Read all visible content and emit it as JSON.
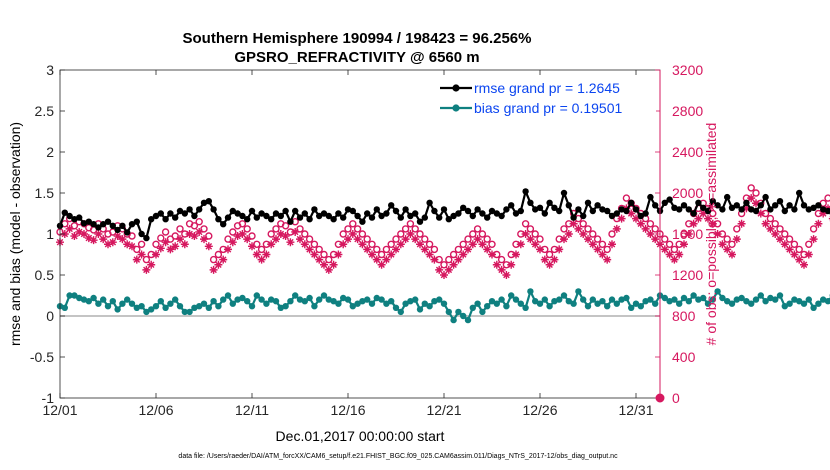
{
  "chart_data": {
    "type": "line",
    "title": "Southern Hemisphere 190994 / 198423 = 96.256%",
    "subtitle": "GPSRO_REFRACTIVITY @ 6560 m",
    "xlabel": "Dec.01,2017 00:00:00 start",
    "ylabel": "rmse and bias (model - observation)",
    "y2label": "# of obs: o=possible; ∗=assimilated",
    "footnote": "data file: /Users/raeder/DAI/ATM_forcXX/CAM6_setup/f.e21.FHIST_BGC.f09_025.CAM6assim.011/Diags_NTrS_2017-12/obs_diag_output.nc",
    "x_range": [
      1,
      32.25
    ],
    "ylim": [
      -1,
      3
    ],
    "y2lim": [
      0,
      3200
    ],
    "x_ticks": [
      1,
      6,
      11,
      16,
      21,
      26,
      31
    ],
    "x_tick_labels": [
      "12/01",
      "12/06",
      "12/11",
      "12/16",
      "12/21",
      "12/26",
      "12/31"
    ],
    "y_ticks": [
      -1,
      -0.5,
      0,
      0.5,
      1,
      1.5,
      2,
      2.5,
      3
    ],
    "y_tick_labels": [
      "-1",
      "-0.5",
      "0",
      "0.5",
      "1",
      "1.5",
      "2",
      "2.5",
      "3"
    ],
    "y2_ticks": [
      0,
      400,
      800,
      1200,
      1600,
      2000,
      2400,
      2800,
      3200
    ],
    "y2_tick_labels": [
      "0",
      "400",
      "800",
      "1200",
      "1600",
      "2000",
      "2400",
      "2800",
      "3200"
    ],
    "x_step_days": 0.25,
    "legend": [
      {
        "label": "rmse grand pr = 1.2645",
        "color": "#000000"
      },
      {
        "label": "bias grand pr = 0.19501",
        "color": "#0f8080"
      }
    ],
    "colors": {
      "rmse": "#000000",
      "bias": "#0f8080",
      "obs": "#d6185f",
      "zero": "#b0b0b0",
      "legend_text": "#0b45f0"
    },
    "series": [
      {
        "name": "rmse",
        "values": [
          1.1,
          1.26,
          1.22,
          1.18,
          1.2,
          1.13,
          1.15,
          1.12,
          1.08,
          1.12,
          1.15,
          1.1,
          1.05,
          1.1,
          1.02,
          1.12,
          1.15,
          1.0,
          0.95,
          1.18,
          1.22,
          1.25,
          1.18,
          1.25,
          1.2,
          1.28,
          1.25,
          1.3,
          1.22,
          1.3,
          1.38,
          1.4,
          1.3,
          1.18,
          1.12,
          1.2,
          1.28,
          1.25,
          1.22,
          1.18,
          1.28,
          1.2,
          1.25,
          1.22,
          1.18,
          1.25,
          1.22,
          1.28,
          1.15,
          1.28,
          1.2,
          1.25,
          1.18,
          1.3,
          1.22,
          1.25,
          1.22,
          1.18,
          1.25,
          1.2,
          1.3,
          1.28,
          1.22,
          1.15,
          1.25,
          1.2,
          1.3,
          1.22,
          1.25,
          1.35,
          1.28,
          1.2,
          1.3,
          1.22,
          1.25,
          1.15,
          1.2,
          1.38,
          1.28,
          1.2,
          1.3,
          1.18,
          1.22,
          1.25,
          1.32,
          1.28,
          1.22,
          1.3,
          1.25,
          1.2,
          1.28,
          1.25,
          1.22,
          1.3,
          1.35,
          1.25,
          1.28,
          1.52,
          1.38,
          1.3,
          1.32,
          1.25,
          1.38,
          1.32,
          1.28,
          1.5,
          1.35,
          1.2,
          1.3,
          1.22,
          1.38,
          1.28,
          1.35,
          1.3,
          1.28,
          1.22,
          1.25,
          1.3,
          1.28,
          1.38,
          1.3,
          1.22,
          1.25,
          1.45,
          1.35,
          1.28,
          1.38,
          1.42,
          1.32,
          1.3,
          1.35,
          1.3,
          1.25,
          1.38,
          1.32,
          1.28,
          1.4,
          1.35,
          1.3,
          1.45,
          1.32,
          1.35,
          1.3,
          1.38,
          1.3,
          1.28,
          1.35,
          1.45,
          1.3,
          1.35,
          1.4,
          1.28,
          1.35,
          1.3,
          1.5,
          1.35,
          1.3,
          1.32,
          1.35,
          1.3,
          1.28,
          1.25,
          1.4,
          1.3,
          1.38,
          1.28,
          1.32,
          1.35,
          1.42,
          1.3,
          1.28,
          1.35,
          1.55,
          1.38,
          1.3,
          1.25,
          1.4,
          1.32,
          1.5,
          1.38,
          1.35,
          1.32,
          1.38,
          1.35,
          1.3,
          1.35,
          1.38,
          1.28,
          1.35,
          1.3,
          1.38,
          1.45,
          1.35,
          1.32,
          1.38,
          1.28,
          1.3,
          1.52,
          1.38,
          1.35,
          1.3,
          1.42,
          1.35,
          1.45,
          1.38,
          1.32,
          1.35,
          1.3,
          1.28,
          1.35,
          1.25,
          1.32,
          1.3,
          1.48,
          1.35,
          1.42,
          1.3,
          1.35,
          1.28,
          1.32,
          1.35,
          1.45,
          1.32,
          1.3,
          1.35,
          1.38,
          1.3,
          1.28,
          1.3,
          1.35,
          1.55,
          1.35,
          1.3,
          1.38,
          1.32,
          1.35,
          1.4,
          1.3,
          1.28,
          1.35,
          1.32,
          1.3,
          1.28,
          1.35,
          1.4,
          1.3,
          1.35,
          1.38,
          1.42,
          1.3,
          1.38,
          1.35,
          1.3,
          1.45,
          1.32,
          1.3,
          1.28,
          1.3,
          1.35
        ]
      },
      {
        "name": "bias",
        "values": [
          0.12,
          0.1,
          0.25,
          0.25,
          0.22,
          0.2,
          0.18,
          0.22,
          0.15,
          0.2,
          0.12,
          0.18,
          0.08,
          0.15,
          0.2,
          0.15,
          0.1,
          0.12,
          0.05,
          0.08,
          0.12,
          0.18,
          0.1,
          0.15,
          0.2,
          0.12,
          0.05,
          0.05,
          0.1,
          0.12,
          0.15,
          0.1,
          0.18,
          0.12,
          0.2,
          0.25,
          0.15,
          0.2,
          0.22,
          0.18,
          0.12,
          0.25,
          0.2,
          0.15,
          0.2,
          0.18,
          0.1,
          0.12,
          0.18,
          0.25,
          0.2,
          0.18,
          0.22,
          0.12,
          0.2,
          0.25,
          0.2,
          0.18,
          0.15,
          0.22,
          0.2,
          0.12,
          0.15,
          0.18,
          0.2,
          0.15,
          0.22,
          0.2,
          0.15,
          0.18,
          0.1,
          0.05,
          0.15,
          0.18,
          0.2,
          0.08,
          0.15,
          0.12,
          0.18,
          0.2,
          0.15,
          0.05,
          -0.05,
          0.05,
          0.0,
          -0.05,
          0.1,
          0.15,
          0.05,
          0.12,
          0.18,
          0.15,
          0.2,
          0.12,
          0.25,
          0.2,
          0.15,
          0.1,
          0.3,
          0.18,
          0.15,
          0.2,
          0.12,
          0.18,
          0.2,
          0.25,
          0.18,
          0.15,
          0.3,
          0.2,
          0.12,
          0.2,
          0.15,
          0.18,
          0.12,
          0.2,
          0.15,
          0.2,
          0.22,
          0.1,
          0.15,
          0.12,
          0.18,
          0.2,
          0.15,
          0.25,
          0.22,
          0.18,
          0.2,
          0.15,
          0.22,
          0.18,
          0.25,
          0.2,
          0.22,
          0.15,
          0.2,
          0.3,
          0.22,
          0.18,
          0.15,
          0.2,
          0.22,
          0.18,
          0.15,
          0.2,
          0.25,
          0.18,
          0.22,
          0.2,
          0.25,
          0.12,
          0.15,
          0.2,
          0.18,
          0.15,
          0.2,
          0.1,
          0.15,
          0.2,
          0.18,
          0.25,
          0.2,
          0.18,
          0.15,
          0.2,
          0.25,
          0.22,
          0.15,
          0.2,
          0.22,
          0.18,
          0.2,
          0.15,
          0.25,
          0.3,
          0.15,
          0.18,
          0.22,
          0.2,
          0.15,
          0.18,
          0.2,
          0.15,
          0.22,
          0.18,
          0.2,
          0.15,
          0.12,
          0.18,
          0.22,
          0.25,
          0.2,
          0.18,
          0.22,
          0.2,
          0.25,
          0.28,
          0.22,
          0.3,
          0.25,
          0.2,
          0.22,
          0.18,
          0.2,
          0.25,
          0.22,
          0.18,
          0.2,
          0.22,
          0.25,
          0.2,
          0.22,
          0.25,
          0.3,
          0.25,
          0.22,
          0.28,
          0.35,
          0.3,
          0.25,
          0.22,
          0.28,
          0.3,
          0.25,
          0.22,
          0.28,
          0.4,
          0.3,
          0.25,
          0.28,
          0.3,
          0.35,
          0.28,
          0.3,
          0.25,
          0.22,
          0.28,
          0.35,
          0.22,
          0.3,
          0.25,
          0.22,
          0.28,
          0.3,
          0.25,
          0.28,
          0.3,
          0.32,
          0.25,
          0.28,
          0.38,
          0.3,
          0.35,
          0.28,
          0.35,
          0.3,
          -0.02,
          0.28
        ]
      },
      {
        "name": "possible",
        "axis": "right",
        "values": [
          1620,
          1700,
          1750,
          1680,
          1720,
          1700,
          1660,
          1640,
          1700,
          1650,
          1600,
          1620,
          1680,
          1650,
          1600,
          1580,
          1450,
          1500,
          1350,
          1400,
          1500,
          1560,
          1620,
          1550,
          1580,
          1650,
          1600,
          1700,
          1680,
          1720,
          1650,
          1580,
          1350,
          1400,
          1450,
          1550,
          1620,
          1680,
          1700,
          1650,
          1580,
          1500,
          1450,
          1500,
          1600,
          1650,
          1700,
          1680,
          1620,
          1720,
          1650,
          1600,
          1550,
          1500,
          1450,
          1400,
          1350,
          1400,
          1500,
          1600,
          1650,
          1700,
          1650,
          1600,
          1550,
          1500,
          1450,
          1400,
          1450,
          1500,
          1550,
          1600,
          1650,
          1700,
          1650,
          1600,
          1550,
          1500,
          1450,
          1350,
          1300,
          1350,
          1400,
          1450,
          1500,
          1550,
          1600,
          1650,
          1600,
          1550,
          1500,
          1400,
          1350,
          1300,
          1400,
          1500,
          1600,
          1700,
          1650,
          1600,
          1550,
          1450,
          1400,
          1450,
          1550,
          1650,
          1700,
          1800,
          1750,
          1700,
          1650,
          1600,
          1550,
          1500,
          1450,
          1600,
          1750,
          1850,
          1950,
          1900,
          1850,
          1800,
          1750,
          1700,
          1650,
          1600,
          1550,
          1500,
          1450,
          1500,
          1600,
          1700,
          1800,
          1850,
          1900,
          1850,
          1800,
          1700,
          1600,
          1550,
          1500,
          1650,
          1800,
          1950,
          2050,
          2000,
          1900,
          1800,
          1750,
          1700,
          1650,
          1600,
          1550,
          1500,
          1450,
          1400,
          1500,
          1650,
          1800,
          1900,
          1950,
          1850,
          1800,
          1700,
          1600,
          1550,
          1500,
          1450,
          1500,
          1600,
          1700,
          1800,
          1900,
          2000,
          2050,
          1950,
          1900,
          1850,
          1800,
          1700,
          1650,
          1600,
          1550,
          1500,
          1450,
          1500,
          1600,
          1700,
          1800,
          1850,
          1900,
          1950,
          2000,
          1950,
          1850,
          1800,
          1700,
          1650,
          1600,
          1700,
          1800,
          1900,
          2000,
          2100,
          2050,
          1950,
          1900,
          1850,
          1800,
          1750,
          1700,
          1650,
          1600,
          1550,
          1500,
          1600,
          1700,
          1800,
          1900,
          1950,
          1900,
          1850,
          1800,
          1750,
          1700,
          1650,
          1600,
          1550,
          1500,
          1450,
          1500,
          1600,
          1700,
          1800,
          1850,
          1900,
          1850,
          1800,
          1750,
          1700,
          1650,
          1600,
          1550,
          1500,
          1450,
          1500,
          1600,
          1700,
          1650,
          1600,
          1550,
          1500,
          1600,
          1650,
          1700,
          1600,
          1650
        ]
      },
      {
        "name": "assimilated",
        "axis": "right",
        "values": [
          1520,
          1600,
          1650,
          1580,
          1620,
          1600,
          1560,
          1540,
          1600,
          1550,
          1500,
          1520,
          1580,
          1550,
          1500,
          1480,
          1350,
          1400,
          1250,
          1300,
          1400,
          1460,
          1520,
          1450,
          1480,
          1550,
          1500,
          1600,
          1580,
          1620,
          1550,
          1480,
          1250,
          1300,
          1350,
          1450,
          1520,
          1580,
          1600,
          1550,
          1480,
          1400,
          1350,
          1400,
          1500,
          1550,
          1600,
          1580,
          1520,
          1620,
          1550,
          1500,
          1450,
          1400,
          1350,
          1300,
          1250,
          1300,
          1400,
          1500,
          1550,
          1600,
          1550,
          1500,
          1450,
          1400,
          1350,
          1300,
          1350,
          1400,
          1450,
          1500,
          1550,
          1600,
          1550,
          1500,
          1450,
          1400,
          1350,
          1250,
          1200,
          1250,
          1300,
          1350,
          1400,
          1450,
          1500,
          1550,
          1500,
          1450,
          1400,
          1300,
          1250,
          1200,
          1300,
          1400,
          1500,
          1600,
          1550,
          1500,
          1450,
          1350,
          1300,
          1350,
          1450,
          1550,
          1600,
          1700,
          1650,
          1600,
          1550,
          1500,
          1450,
          1400,
          1350,
          1500,
          1650,
          1750,
          1850,
          1800,
          1750,
          1700,
          1650,
          1600,
          1550,
          1500,
          1450,
          1400,
          1350,
          1400,
          1500,
          1600,
          1700,
          1750,
          1800,
          1750,
          1700,
          1600,
          1500,
          1450,
          1400,
          1550,
          1700,
          1850,
          1950,
          1900,
          1800,
          1700,
          1650,
          1600,
          1550,
          1500,
          1450,
          1400,
          1350,
          1300,
          1400,
          1550,
          1700,
          1800,
          1850,
          1750,
          1700,
          1600,
          1500,
          1450,
          1400,
          1350,
          1400,
          1500,
          1600,
          1700,
          1800,
          1900,
          1950,
          1850,
          1800,
          1750,
          1700,
          1600,
          1550,
          1500,
          1450,
          1400,
          1350,
          1400,
          1500,
          1600,
          1700,
          1750,
          1800,
          1850,
          1900,
          1850,
          1750,
          1700,
          1600,
          1550,
          1500,
          1600,
          1700,
          1800,
          1900,
          2000,
          1950,
          1850,
          1800,
          1750,
          1700,
          1650,
          1600,
          1550,
          1500,
          1450,
          1400,
          1500,
          1600,
          1700,
          1800,
          1850,
          1800,
          1750,
          1700,
          1650,
          1600,
          1550,
          1500,
          1450,
          1400,
          1350,
          1400,
          1500,
          1600,
          1700,
          1750,
          1800,
          1750,
          1700,
          1650,
          1600,
          1550,
          1500,
          1450,
          1400,
          1350,
          1400,
          1500,
          1600,
          1550,
          1500,
          1450,
          1400,
          1500,
          1550,
          1600,
          1500,
          1550
        ]
      }
    ]
  }
}
